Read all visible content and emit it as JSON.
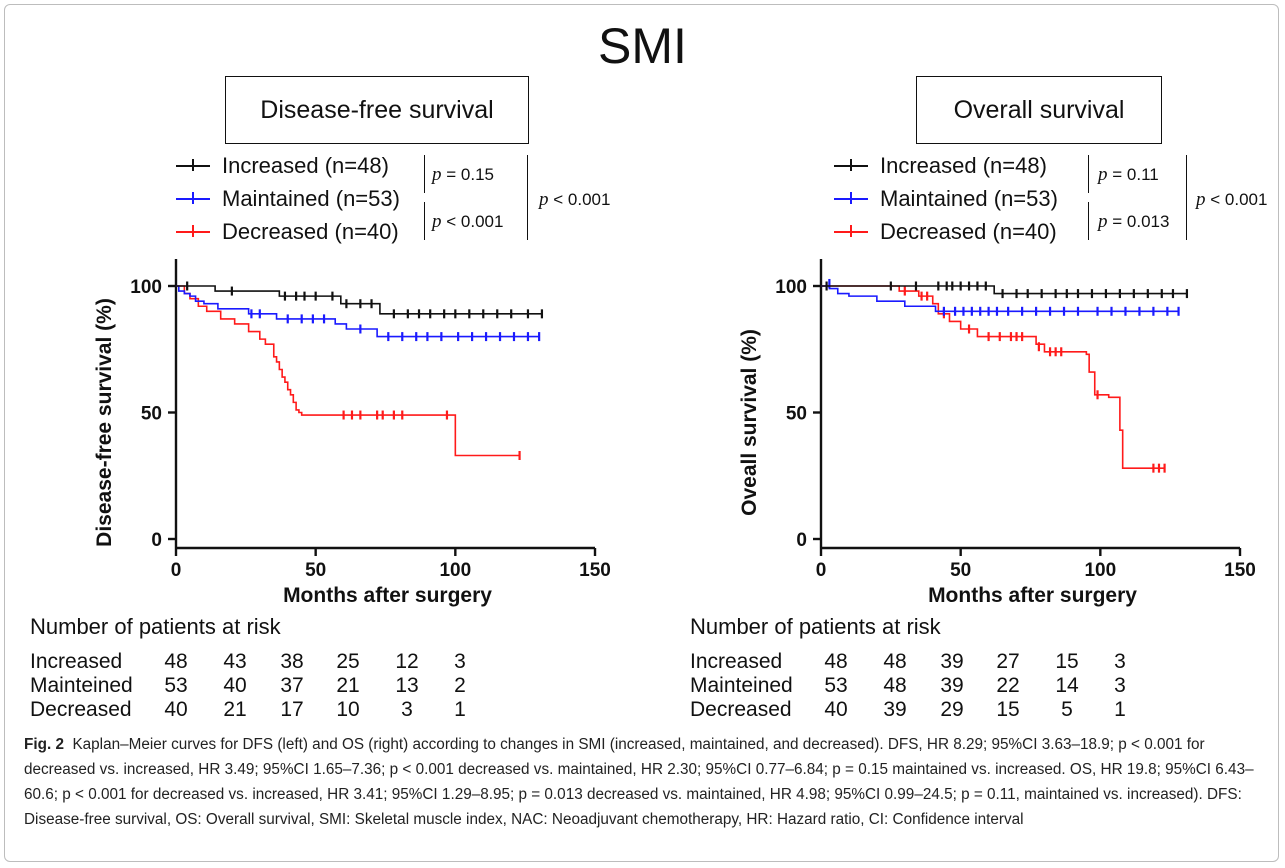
{
  "figure": {
    "main_title": "SMI",
    "caption_label": "Fig. 2",
    "caption_text": "Kaplan–Meier curves for DFS (left) and OS (right) according to changes in SMI (increased, maintained, and decreased). DFS, HR 8.29; 95%CI 3.63–18.9; p < 0.001 for decreased vs. increased, HR 3.49; 95%CI 1.65–7.36; p < 0.001 decreased vs. maintained, HR 2.30; 95%CI 0.77–6.84; p = 0.15 maintained vs. increased. OS, HR 19.8; 95%CI 6.43–60.6; p < 0.001 for decreased vs. increased, HR 3.41; 95%CI 1.29–8.95; p = 0.013 decreased vs. maintained, HR 4.98; 95%CI 0.99–24.5; p = 0.11, maintained vs. increased). DFS: Disease-free survival, OS: Overall survival, SMI: Skeletal muscle index, NAC: Neoadjuvant chemotherapy, HR: Hazard ratio, CI: Confidence interval"
  },
  "colors": {
    "increased": "#111111",
    "maintained": "#1a1aff",
    "decreased": "#ff1a1a"
  },
  "risk_row_labels": [
    "Increased",
    "Mainteined",
    "Decreased"
  ],
  "chart_data": [
    {
      "type": "line",
      "title": "Disease-free survival",
      "xlabel": "Months after surgery",
      "ylabel": "Disease-free survival (%)",
      "xlim": [
        0,
        150
      ],
      "ylim": [
        0,
        100
      ],
      "xticks": [
        0,
        50,
        100,
        150
      ],
      "yticks": [
        0,
        50,
        100
      ],
      "legend": [
        "Increased  (n=48)",
        "Maintained (n=53)",
        "Decreased (n=40)"
      ],
      "p_values": {
        "increased_vs_maintained": "= 0.15",
        "maintained_vs_decreased": "< 0.001",
        "increased_vs_decreased": "< 0.001"
      },
      "series": [
        {
          "name": "Increased  (n=48)",
          "color": "#111111",
          "x": [
            0,
            5,
            14,
            26,
            37,
            59,
            73,
            131
          ],
          "y": [
            100,
            100,
            98,
            98,
            96,
            93,
            89,
            89
          ],
          "censors": [
            [
              4,
              100
            ],
            [
              20,
              98
            ],
            [
              39,
              96
            ],
            [
              43,
              96
            ],
            [
              46,
              96
            ],
            [
              50,
              96
            ],
            [
              56,
              96
            ],
            [
              61,
              93
            ],
            [
              66,
              93
            ],
            [
              70,
              93
            ],
            [
              78,
              89
            ],
            [
              83,
              89
            ],
            [
              87,
              89
            ],
            [
              91,
              89
            ],
            [
              96,
              89
            ],
            [
              100,
              89
            ],
            [
              105,
              89
            ],
            [
              110,
              89
            ],
            [
              115,
              89
            ],
            [
              120,
              89
            ],
            [
              126,
              89
            ],
            [
              131,
              89
            ]
          ]
        },
        {
          "name": "Maintained (n=53)",
          "color": "#1a1aff",
          "x": [
            0,
            1,
            3,
            5,
            7,
            10,
            15,
            26,
            36,
            43,
            57,
            61,
            72,
            130
          ],
          "y": [
            100,
            98,
            97,
            96,
            94,
            93,
            91,
            89,
            87,
            87,
            85,
            83,
            80,
            80
          ],
          "censors": [
            [
              27,
              89
            ],
            [
              30,
              89
            ],
            [
              40,
              87
            ],
            [
              45,
              87
            ],
            [
              49,
              87
            ],
            [
              53,
              87
            ],
            [
              66,
              83
            ],
            [
              76,
              80
            ],
            [
              81,
              80
            ],
            [
              86,
              80
            ],
            [
              90,
              80
            ],
            [
              95,
              80
            ],
            [
              101,
              80
            ],
            [
              106,
              80
            ],
            [
              111,
              80
            ],
            [
              116,
              80
            ],
            [
              121,
              80
            ],
            [
              126,
              80
            ],
            [
              130,
              80
            ]
          ]
        },
        {
          "name": "Decreased (n=40)",
          "color": "#ff1a1a",
          "x": [
            0,
            3,
            5,
            8,
            11,
            16,
            21,
            26,
            30,
            32,
            35,
            36,
            37,
            38,
            39,
            40,
            41,
            42,
            43,
            44,
            45,
            47,
            50,
            100,
            123
          ],
          "y": [
            100,
            97,
            95,
            92,
            90,
            87,
            85,
            82,
            79,
            77,
            72,
            70,
            67,
            64,
            62,
            59,
            57,
            54,
            51,
            50,
            49,
            49,
            49,
            33,
            33
          ],
          "censors": [
            [
              60,
              49
            ],
            [
              63,
              49
            ],
            [
              66,
              49
            ],
            [
              72,
              49
            ],
            [
              74,
              49
            ],
            [
              78,
              49
            ],
            [
              81,
              49
            ],
            [
              97,
              49
            ],
            [
              123,
              33
            ]
          ]
        }
      ],
      "risk_table": {
        "title": "Number of patients at risk",
        "rows": [
          [
            "48",
            "43",
            "38",
            "25",
            "12",
            "3"
          ],
          [
            "53",
            "40",
            "37",
            "21",
            "13",
            "2"
          ],
          [
            "40",
            "21",
            "17",
            "10",
            "3",
            "1"
          ]
        ]
      }
    },
    {
      "type": "line",
      "title": "Overall survival",
      "xlabel": "Months after surgery",
      "ylabel": "Oveall survival (%)",
      "xlim": [
        0,
        150
      ],
      "ylim": [
        0,
        100
      ],
      "xticks": [
        0,
        50,
        100,
        150
      ],
      "yticks": [
        0,
        50,
        100
      ],
      "legend": [
        "Increased  (n=48)",
        "Maintained (n=53)",
        "Decreased (n=40)"
      ],
      "p_values": {
        "increased_vs_maintained": "= 0.11",
        "maintained_vs_decreased": "= 0.013",
        "increased_vs_decreased": "< 0.001"
      },
      "series": [
        {
          "name": "Increased  (n=48)",
          "color": "#111111",
          "x": [
            0,
            62,
            131
          ],
          "y": [
            100,
            97,
            97
          ],
          "censors": [
            [
              2,
              100
            ],
            [
              25,
              100
            ],
            [
              34,
              100
            ],
            [
              42,
              100
            ],
            [
              45,
              100
            ],
            [
              47,
              100
            ],
            [
              50,
              100
            ],
            [
              53,
              100
            ],
            [
              56,
              100
            ],
            [
              59,
              100
            ],
            [
              65,
              97
            ],
            [
              70,
              97
            ],
            [
              74,
              97
            ],
            [
              79,
              97
            ],
            [
              84,
              97
            ],
            [
              88,
              97
            ],
            [
              92,
              97
            ],
            [
              97,
              97
            ],
            [
              102,
              97
            ],
            [
              107,
              97
            ],
            [
              112,
              97
            ],
            [
              117,
              97
            ],
            [
              122,
              97
            ],
            [
              126,
              97
            ],
            [
              131,
              97
            ]
          ]
        },
        {
          "name": "Maintained (n=53)",
          "color": "#1a1aff",
          "x": [
            0,
            3,
            6,
            10,
            20,
            30,
            41,
            128
          ],
          "y": [
            100,
            99,
            97,
            96,
            94,
            92,
            90,
            90
          ],
          "censors": [
            [
              3,
              101
            ],
            [
              44,
              90
            ],
            [
              48,
              90
            ],
            [
              51,
              90
            ],
            [
              54,
              90
            ],
            [
              57,
              90
            ],
            [
              60,
              90
            ],
            [
              63,
              90
            ],
            [
              67,
              90
            ],
            [
              72,
              90
            ],
            [
              77,
              90
            ],
            [
              82,
              90
            ],
            [
              87,
              90
            ],
            [
              92,
              90
            ],
            [
              99,
              90
            ],
            [
              104,
              90
            ],
            [
              109,
              90
            ],
            [
              114,
              90
            ],
            [
              119,
              90
            ],
            [
              124,
              90
            ],
            [
              128,
              90
            ]
          ]
        },
        {
          "name": "Decreased (n=40)",
          "color": "#ff1a1a",
          "x": [
            0,
            28,
            35,
            40,
            42,
            46,
            50,
            56,
            77,
            80,
            95,
            96,
            98,
            103,
            107,
            108,
            123
          ],
          "y": [
            100,
            98,
            96,
            93,
            89,
            86,
            83,
            80,
            77,
            74,
            73,
            66,
            57,
            56,
            43,
            28,
            28
          ],
          "censors": [
            [
              30,
              98
            ],
            [
              36,
              96
            ],
            [
              38,
              96
            ],
            [
              44,
              89
            ],
            [
              53,
              83
            ],
            [
              60,
              80
            ],
            [
              64,
              80
            ],
            [
              68,
              80
            ],
            [
              70,
              80
            ],
            [
              72,
              80
            ],
            [
              78,
              76
            ],
            [
              82,
              74
            ],
            [
              84,
              74
            ],
            [
              86,
              74
            ],
            [
              99,
              57
            ],
            [
              119,
              28
            ],
            [
              121,
              28
            ],
            [
              123,
              28
            ]
          ]
        }
      ],
      "risk_table": {
        "title": "Number of patients at risk",
        "rows": [
          [
            "48",
            "48",
            "39",
            "27",
            "15",
            "3"
          ],
          [
            "53",
            "48",
            "39",
            "22",
            "14",
            "3"
          ],
          [
            "40",
            "39",
            "29",
            "15",
            "5",
            "1"
          ]
        ]
      }
    }
  ]
}
